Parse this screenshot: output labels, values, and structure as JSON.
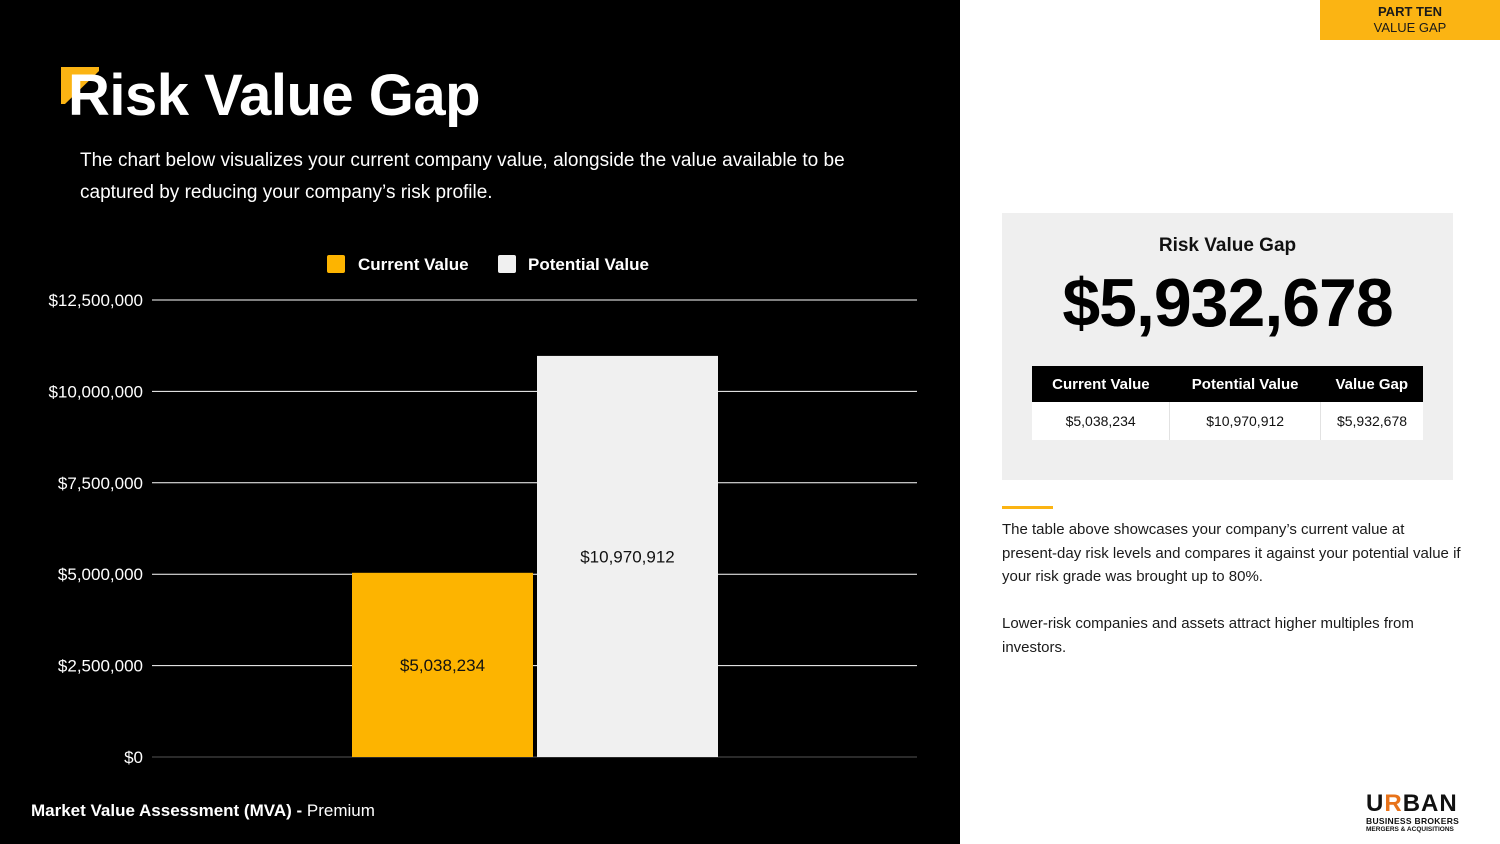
{
  "header": {
    "title": "Risk Value Gap",
    "description": "The chart below visualizes your current company value, alongside the value available to be captured by reducing your company’s risk profile."
  },
  "section_tag": {
    "line1": "PART TEN",
    "line2": "VALUE GAP"
  },
  "footer": {
    "bold": "Market Value Assessment (MVA) -",
    "normal": " Premium"
  },
  "colors": {
    "accent": "#fbb413",
    "current": "#fdb400",
    "potential": "#f0f0f0",
    "background": "#000000"
  },
  "chart_data": {
    "type": "bar",
    "categories": [
      "Current Value",
      "Potential Value"
    ],
    "values": [
      5038234,
      10970912
    ],
    "value_labels": [
      "$5,038,234",
      "$10,970,912"
    ],
    "legend": [
      "Current Value",
      "Potential Value"
    ],
    "legend_position": "top-center",
    "ylim": [
      0,
      12500000
    ],
    "yticks": [
      0,
      2500000,
      5000000,
      7500000,
      10000000,
      12500000
    ],
    "ytick_labels": [
      "$0",
      "$2,500,000",
      "$5,000,000",
      "$7,500,000",
      "$10,000,000",
      "$12,500,000"
    ],
    "grid": true,
    "title": "",
    "xlabel": "",
    "ylabel": ""
  },
  "summary_card": {
    "title": "Risk Value Gap",
    "big_value": "$5,932,678",
    "table": {
      "headers": [
        "Current Value",
        "Potential Value",
        "Value Gap"
      ],
      "row": [
        "$5,038,234",
        "$10,970,912",
        "$5,932,678"
      ]
    }
  },
  "notes": {
    "paragraph1": "The table above showcases your company’s current value at present-day risk levels and compares it against your potential value if your risk grade was brought up to 80%.",
    "paragraph2": "Lower-risk companies and assets attract higher multiples from investors."
  },
  "logo": {
    "word_start": "U",
    "word_r": "R",
    "word_end": "BAN",
    "line1": "BUSINESS BROKERS",
    "line2": "MERGERS & ACQUISITIONS"
  }
}
